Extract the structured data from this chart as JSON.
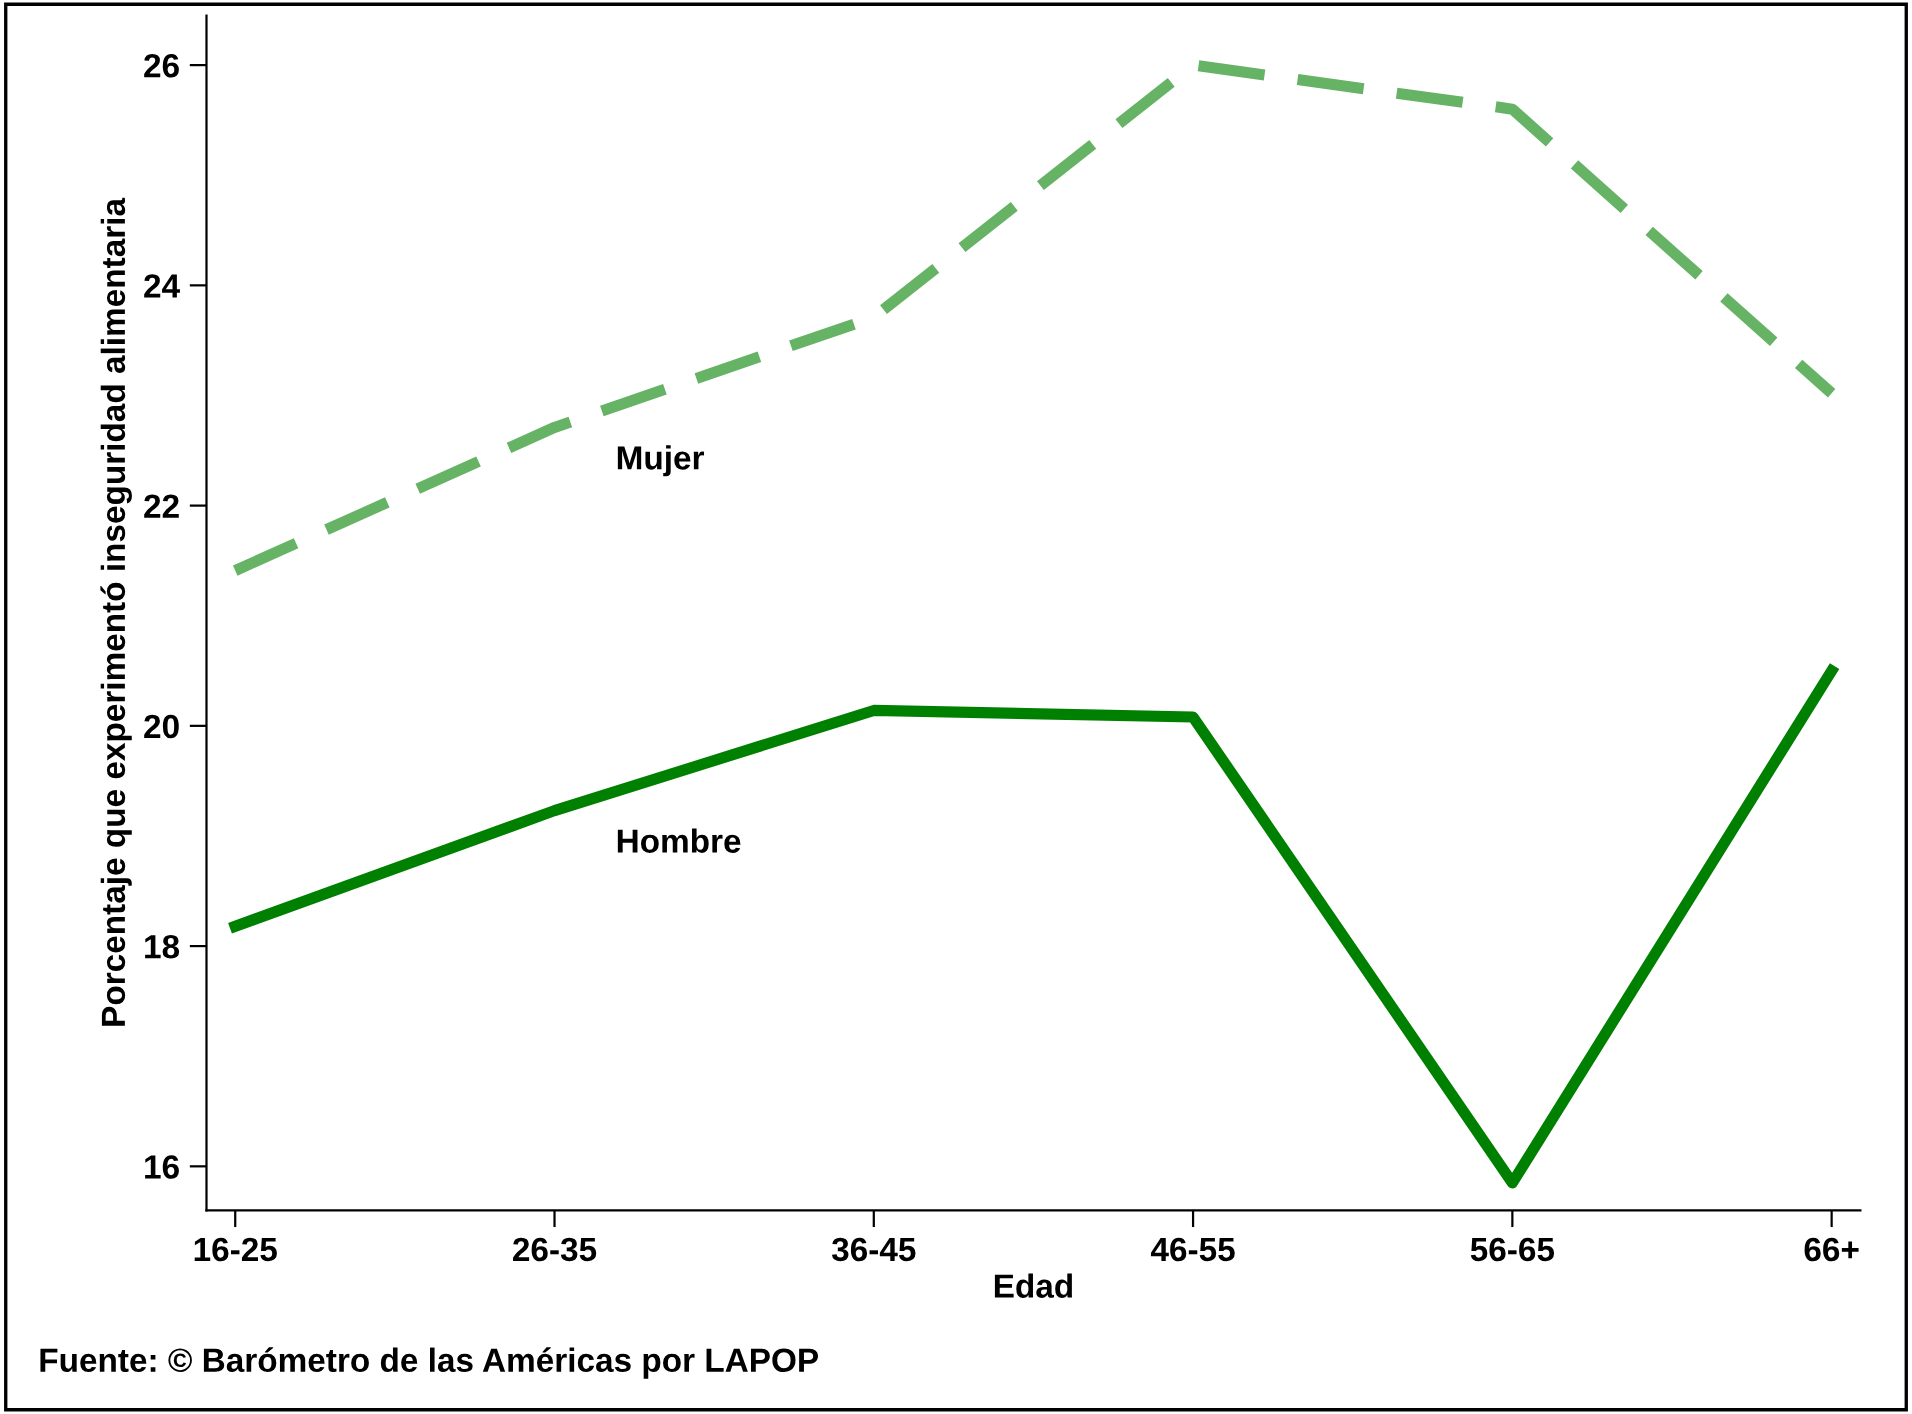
{
  "chart_data": {
    "type": "line",
    "xlabel": "Edad",
    "ylabel": "Porcentaje que experimentó inseguridad alimentaria",
    "categories": [
      "16-25",
      "26-35",
      "36-45",
      "46-55",
      "56-65",
      "66+"
    ],
    "series": [
      {
        "name": "Mujer",
        "color": "#66b366",
        "line_style": "dashed",
        "values": [
          21.41,
          22.71,
          23.71,
          26.0,
          25.6,
          23.02
        ]
      },
      {
        "name": "Hombre",
        "color": "#008000",
        "line_style": "solid",
        "values": [
          18.18,
          19.23,
          20.14,
          20.08,
          15.85,
          20.5
        ]
      }
    ],
    "ylim": [
      15.6,
      26.45
    ],
    "yticks": [
      16,
      18,
      20,
      22,
      24,
      26
    ],
    "grid": false,
    "legend": false,
    "marker": "none",
    "annotations": [
      "Fuente: © Barómetro de las Américas por LAPOP"
    ]
  }
}
